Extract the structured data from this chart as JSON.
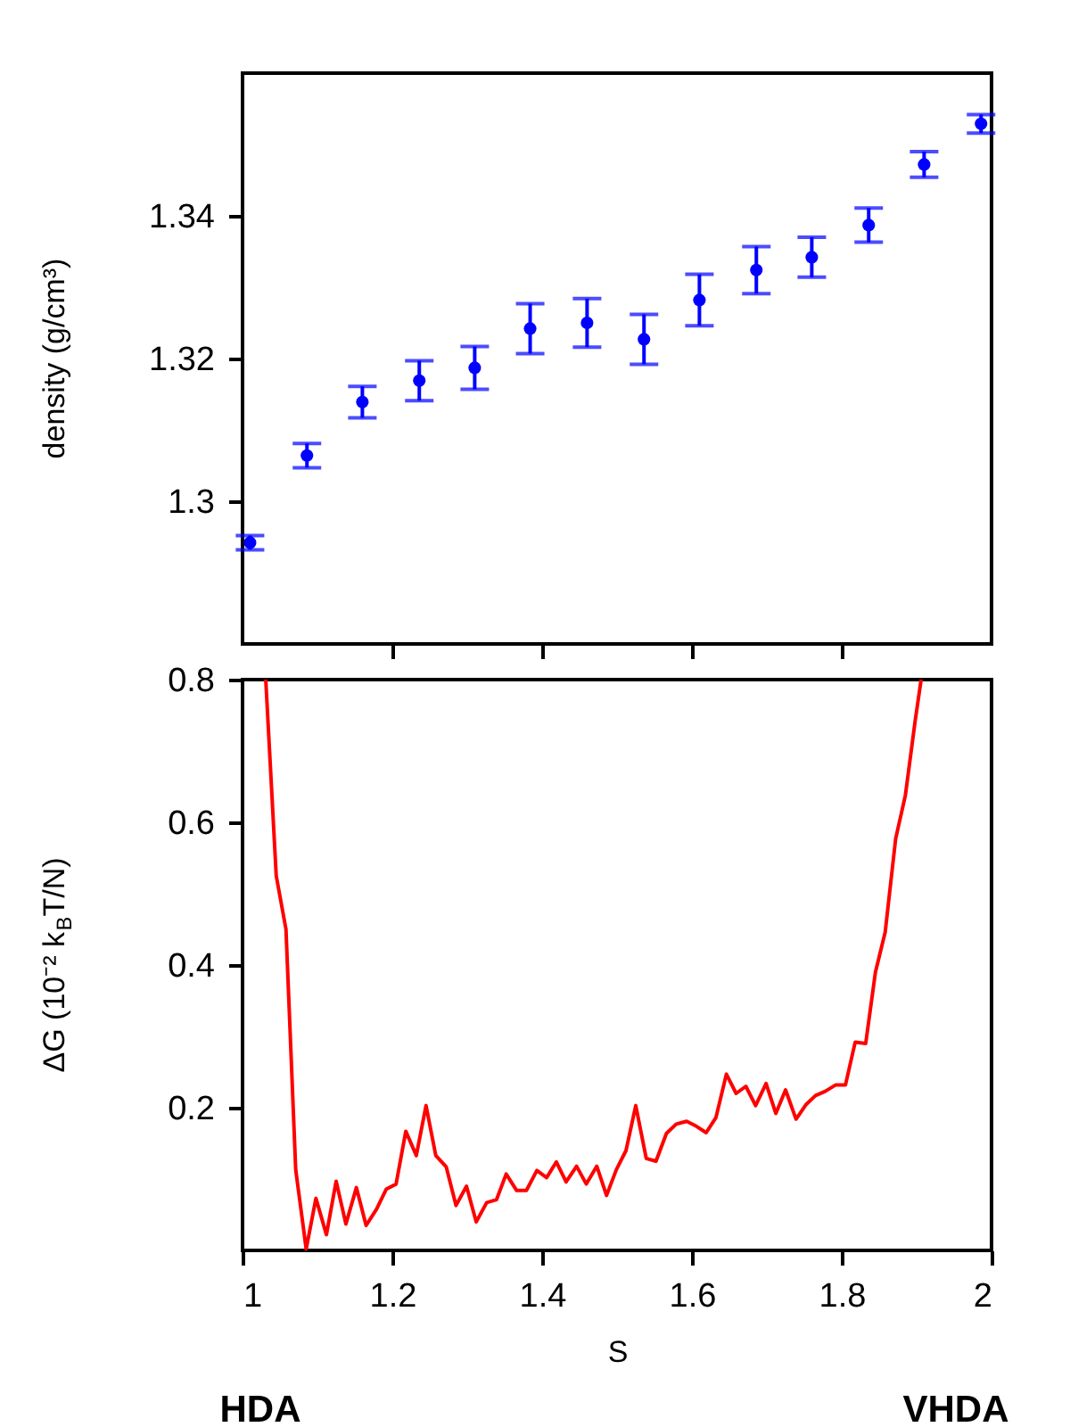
{
  "chart_data": [
    {
      "type": "scatter",
      "ylabel": "density (g/cm³)",
      "x": [
        1.01,
        1.086,
        1.16,
        1.236,
        1.31,
        1.384,
        1.46,
        1.536,
        1.61,
        1.686,
        1.76,
        1.836,
        1.91,
        1.986
      ],
      "series": [
        {
          "color": "#0000ff",
          "values": [
            1.2942,
            1.3064,
            1.3139,
            1.3169,
            1.3187,
            1.3242,
            1.325,
            1.3227,
            1.3282,
            1.3324,
            1.3342,
            1.3387,
            1.3472,
            1.3529
          ],
          "errors": [
            0.001,
            0.0017,
            0.0022,
            0.0028,
            0.003,
            0.0035,
            0.0034,
            0.0035,
            0.0036,
            0.0033,
            0.0028,
            0.0024,
            0.0018,
            0.0013
          ]
        }
      ],
      "marker": "circle",
      "xlim": [
        1,
        2
      ],
      "xticks": [
        {
          "value": 1.2,
          "label": null
        },
        {
          "value": 1.4,
          "label": null
        },
        {
          "value": 1.6,
          "label": null
        },
        {
          "value": 1.8,
          "label": null
        }
      ],
      "ylim": [
        1.28,
        1.36
      ],
      "yticks": [
        1.3,
        1.32,
        1.34
      ],
      "tick_labels": "y",
      "grid": false
    },
    {
      "type": "line",
      "xlabel": "S",
      "ylabel": "ΔG (10⁻² k$_{B}$T/N)",
      "annotations": [
        "HDA",
        "VHDA"
      ],
      "x": [
        1.031,
        1.045,
        1.058,
        1.071,
        1.085,
        1.098,
        1.112,
        1.125,
        1.138,
        1.152,
        1.165,
        1.179,
        1.192,
        1.205,
        1.218,
        1.232,
        1.245,
        1.258,
        1.272,
        1.285,
        1.299,
        1.312,
        1.326,
        1.339,
        1.352,
        1.366,
        1.379,
        1.393,
        1.406,
        1.419,
        1.432,
        1.446,
        1.459,
        1.473,
        1.486,
        1.499,
        1.512,
        1.525,
        1.539,
        1.552,
        1.566,
        1.579,
        1.593,
        1.606,
        1.619,
        1.632,
        1.646,
        1.659,
        1.672,
        1.685,
        1.699,
        1.712,
        1.725,
        1.739,
        1.752,
        1.765,
        1.778,
        1.792,
        1.805,
        1.818,
        1.832,
        1.845,
        1.858,
        1.872,
        1.885,
        1.898,
        1.906
      ],
      "series": [
        {
          "color": "#ff0000",
          "values": [
            0.8,
            0.525,
            0.45,
            0.113,
            0.002,
            0.073,
            0.022,
            0.097,
            0.037,
            0.088,
            0.035,
            0.058,
            0.086,
            0.093,
            0.167,
            0.133,
            0.203,
            0.133,
            0.117,
            0.063,
            0.09,
            0.04,
            0.067,
            0.071,
            0.107,
            0.084,
            0.084,
            0.112,
            0.102,
            0.124,
            0.096,
            0.118,
            0.093,
            0.118,
            0.077,
            0.113,
            0.14,
            0.203,
            0.129,
            0.125,
            0.164,
            0.177,
            0.181,
            0.174,
            0.165,
            0.186,
            0.247,
            0.22,
            0.23,
            0.203,
            0.234,
            0.192,
            0.225,
            0.184,
            0.204,
            0.217,
            0.223,
            0.232,
            0.232,
            0.292,
            0.29,
            0.39,
            0.446,
            0.577,
            0.638,
            0.742,
            0.8
          ]
        }
      ],
      "marker": "none",
      "line_style": "solid",
      "xlim": [
        1,
        2
      ],
      "xticks": [
        1,
        1.2,
        1.4,
        1.6,
        1.8,
        2
      ],
      "ylim": [
        0,
        0.8
      ],
      "yticks": [
        0.2,
        0.4,
        0.6,
        0.8
      ],
      "grid": false
    }
  ]
}
